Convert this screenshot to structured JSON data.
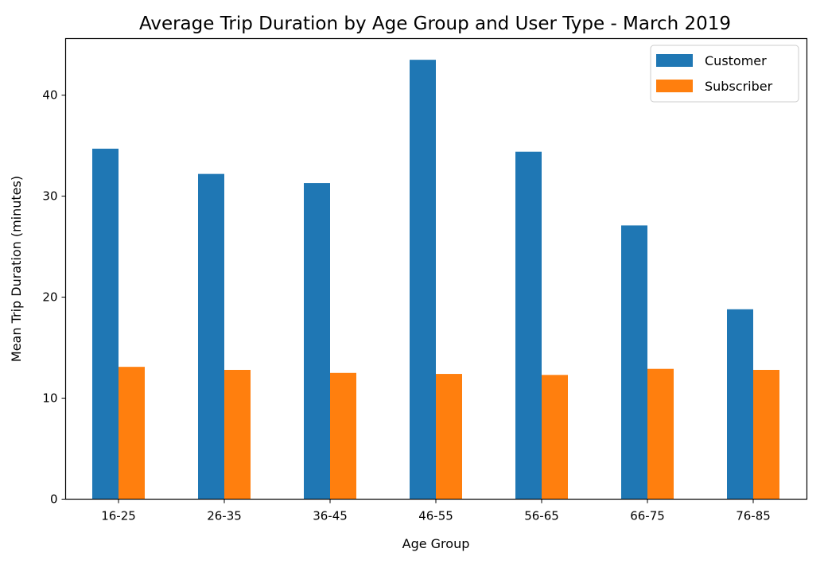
{
  "chart_data": {
    "type": "bar",
    "title": "Average Trip Duration by Age Group and User Type - March 2019",
    "xlabel": "Age Group",
    "ylabel": "Mean Trip Duration (minutes)",
    "categories": [
      "16-25",
      "26-35",
      "36-45",
      "46-55",
      "56-65",
      "66-75",
      "76-85"
    ],
    "series": [
      {
        "name": "Customer",
        "color": "#1f77b4",
        "values": [
          34.7,
          32.2,
          31.3,
          43.5,
          34.4,
          27.1,
          18.8
        ]
      },
      {
        "name": "Subscriber",
        "color": "#ff7f0e",
        "values": [
          13.1,
          12.8,
          12.5,
          12.4,
          12.3,
          12.9,
          12.8
        ]
      }
    ],
    "ylim": [
      0,
      45.6
    ],
    "yticks": [
      0,
      10,
      20,
      30,
      40
    ],
    "grid": false,
    "legend_position": "top-right"
  }
}
